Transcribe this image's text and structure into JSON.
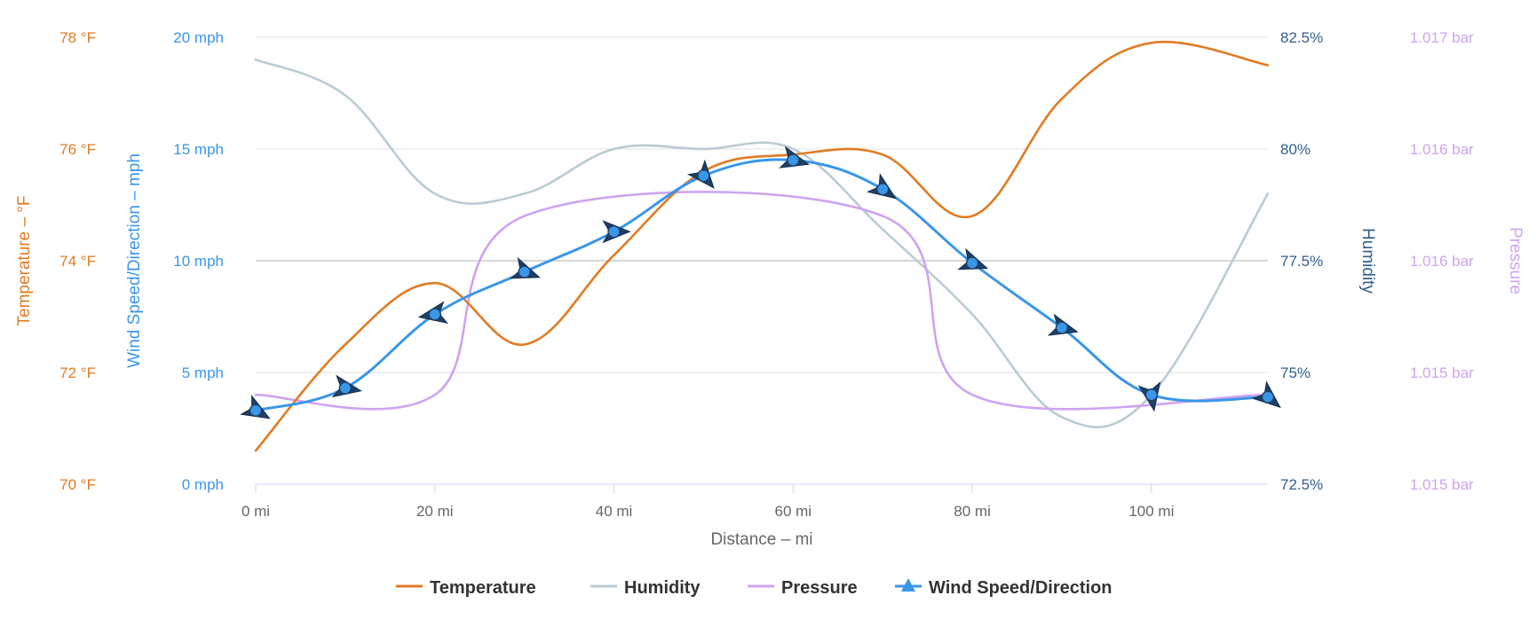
{
  "chart_data": {
    "type": "line",
    "xlabel": "Distance – mi",
    "x_ticks": [
      "0 mi",
      "20 mi",
      "40 mi",
      "60 mi",
      "80 mi",
      "100 mi"
    ],
    "xlim": [
      0,
      113
    ],
    "colors": {
      "temperature": "#e07b24",
      "humidity": "#b9ccd3",
      "pressure": "#cfa3f0",
      "wind": "#3a96e8",
      "humidity_axis": "#2f5f8e",
      "grid": "#e2e2e2"
    },
    "axes": [
      {
        "id": "temp",
        "label": "Temperature – °F",
        "side": "left",
        "range": [
          70,
          78
        ],
        "ticks": [
          "70 °F",
          "72 °F",
          "74 °F",
          "76 °F",
          "78 °F"
        ]
      },
      {
        "id": "wind",
        "label": "Wind Speed/Direction – mph",
        "side": "left",
        "range": [
          0,
          20
        ],
        "ticks": [
          "0 mph",
          "5 mph",
          "10 mph",
          "15 mph",
          "20 mph"
        ]
      },
      {
        "id": "humidity",
        "label": "Humidity",
        "side": "right",
        "range": [
          72.5,
          82.5
        ],
        "ticks": [
          "72.5%",
          "75%",
          "77.5%",
          "80%",
          "82.5%"
        ]
      },
      {
        "id": "pressure",
        "label": "Pressure",
        "side": "right",
        "range": [
          1.0145,
          1.017
        ],
        "ticks": [
          "1.015 bar",
          "1.015 bar",
          "1.016 bar",
          "1.016 bar",
          "1.017 bar"
        ]
      }
    ],
    "series": [
      {
        "name": "Temperature",
        "axis": "temp",
        "x": [
          0,
          10,
          20,
          30,
          40,
          50,
          60,
          70,
          80,
          90,
          100,
          113
        ],
        "y": [
          70.6,
          72.5,
          73.6,
          72.5,
          74.1,
          75.6,
          75.9,
          75.9,
          74.8,
          76.9,
          77.9,
          77.5
        ]
      },
      {
        "name": "Humidity",
        "axis": "humidity",
        "x": [
          0,
          10,
          20,
          30,
          40,
          50,
          60,
          70,
          80,
          90,
          100,
          113
        ],
        "y": [
          82.0,
          81.2,
          79.0,
          79.0,
          80.0,
          80.0,
          80.0,
          78.2,
          76.3,
          74.0,
          74.5,
          79.0
        ]
      },
      {
        "name": "Pressure",
        "axis": "pressure",
        "x": [
          0,
          20,
          30,
          70,
          80,
          113
        ],
        "y": [
          1.015,
          1.015,
          1.016,
          1.016,
          1.015,
          1.015
        ]
      },
      {
        "name": "Wind Speed/Direction",
        "axis": "wind",
        "x": [
          0,
          10,
          20,
          30,
          40,
          50,
          60,
          70,
          80,
          90,
          100,
          113
        ],
        "y": [
          3.3,
          4.3,
          7.6,
          9.5,
          11.3,
          13.8,
          14.5,
          13.2,
          9.9,
          7.0,
          4.0,
          3.9
        ],
        "direction_deg": [
          120,
          100,
          260,
          110,
          90,
          140,
          105,
          125,
          110,
          105,
          170,
          130
        ]
      }
    ],
    "legend": {
      "placement": "bottom-center",
      "items": [
        "Temperature",
        "Humidity",
        "Pressure",
        "Wind Speed/Direction"
      ]
    }
  }
}
